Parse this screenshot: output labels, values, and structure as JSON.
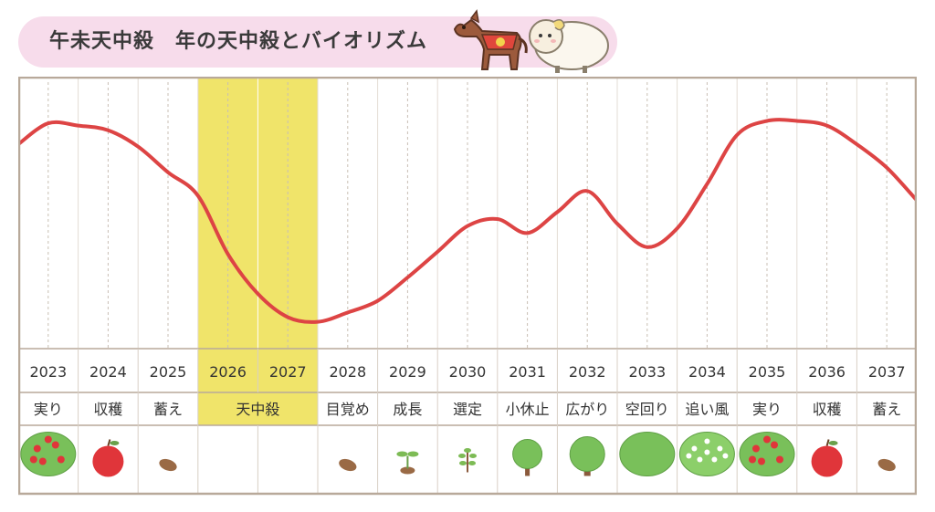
{
  "header": {
    "title": "午未天中殺　年の天中殺とバイオリズム",
    "mascot_icons": [
      "horse-icon",
      "sheep-icon"
    ]
  },
  "colors": {
    "curve": "#dd4444",
    "highlight": "#f0e46a",
    "frame": "#b8a99a",
    "title_pill": "#f7dceb"
  },
  "chart_data": {
    "type": "line",
    "categories": [
      "2023",
      "2024",
      "2025",
      "2026",
      "2027",
      "2028",
      "2029",
      "2030",
      "2031",
      "2032",
      "2033",
      "2034",
      "2035",
      "2036",
      "2037"
    ],
    "phases": [
      {
        "label": "実り",
        "span": 1
      },
      {
        "label": "収穫",
        "span": 1
      },
      {
        "label": "蓄え",
        "span": 1
      },
      {
        "label": "天中殺",
        "span": 2
      },
      {
        "label": "目覚め",
        "span": 1
      },
      {
        "label": "成長",
        "span": 1
      },
      {
        "label": "選定",
        "span": 1
      },
      {
        "label": "小休止",
        "span": 1
      },
      {
        "label": "広がり",
        "span": 1
      },
      {
        "label": "空回り",
        "span": 1
      },
      {
        "label": "追い風",
        "span": 1
      },
      {
        "label": "実り",
        "span": 1
      },
      {
        "label": "収穫",
        "span": 1
      },
      {
        "label": "蓄え",
        "span": 1
      }
    ],
    "icons": [
      "fruit-tree-icon",
      "apple-icon",
      "seed-icon",
      "",
      "",
      "seed-icon",
      "sprout-icon",
      "seedling-icon",
      "small-tree-icon",
      "tree-icon",
      "big-tree-icon",
      "blossom-tree-icon",
      "fruit-tree-icon",
      "apple-icon",
      "seed-icon"
    ],
    "highlight_categories": [
      "2026",
      "2027"
    ],
    "x": [
      2022.5,
      2023.0,
      2023.5,
      2024.0,
      2024.5,
      2025.0,
      2025.5,
      2026.0,
      2026.5,
      2027.0,
      2027.5,
      2028.0,
      2028.5,
      2029.0,
      2029.5,
      2030.0,
      2030.5,
      2031.0,
      2031.5,
      2032.0,
      2032.5,
      2033.0,
      2033.5,
      2034.0,
      2034.5,
      2035.0,
      2035.5,
      2036.0,
      2036.5,
      2037.0,
      2037.5
    ],
    "y": [
      82,
      91,
      90,
      88,
      81,
      70,
      60,
      35,
      18,
      8,
      6,
      10,
      15,
      25,
      36,
      47,
      50,
      44,
      53,
      62,
      48,
      38,
      46,
      65,
      86,
      92,
      92,
      90,
      82,
      72,
      58
    ],
    "ylim": [
      0,
      100
    ],
    "grid": true,
    "xlabel": "",
    "ylabel": ""
  }
}
